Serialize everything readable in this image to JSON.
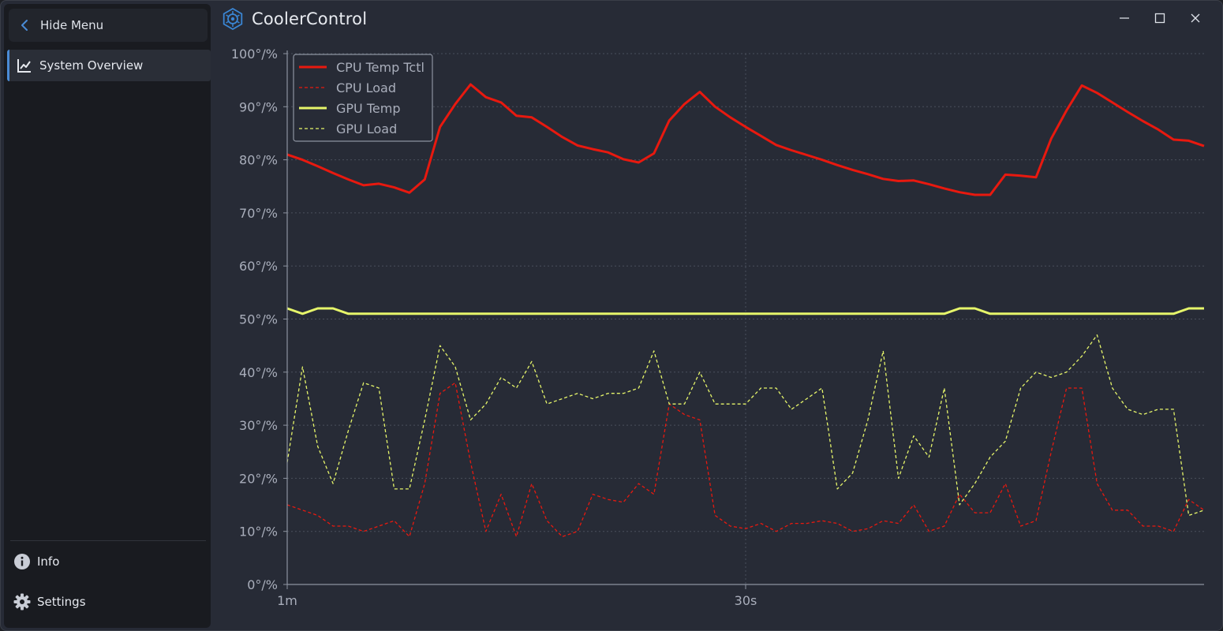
{
  "app": {
    "title": "CoolerControl"
  },
  "sidebar": {
    "hide_menu_label": "Hide Menu",
    "items": [
      {
        "label": "System Overview",
        "icon": "chart-line-icon",
        "active": true
      }
    ],
    "bottom_items": [
      {
        "label": "Info",
        "icon": "info-icon"
      },
      {
        "label": "Settings",
        "icon": "gear-icon"
      }
    ]
  },
  "colors": {
    "accent": "#4a8bd6",
    "cpu": "#e8190f",
    "gpu": "#e6f56a",
    "grid": "#4a4f5c",
    "axis": "#8d93a0"
  },
  "chart_data": {
    "type": "line",
    "title": "",
    "xlabel": "",
    "ylabel": "",
    "ylim": [
      0,
      100
    ],
    "y_ticks": [
      "0°/%",
      "10°/%",
      "20°/%",
      "30°/%",
      "40°/%",
      "50°/%",
      "60°/%",
      "70°/%",
      "80°/%",
      "90°/%",
      "100°/%"
    ],
    "x_ticks": [
      "1m",
      "30s"
    ],
    "xlim": [
      60,
      0
    ],
    "legend_position": "top-left",
    "series": [
      {
        "name": "CPU Temp Tctl",
        "style": "solid",
        "color": "#e8190f",
        "x": [
          60,
          59,
          58,
          57,
          56,
          55,
          54,
          53,
          52,
          51,
          50,
          49,
          48,
          47,
          46,
          45,
          44,
          43,
          42,
          41,
          40,
          39,
          38,
          37,
          36,
          35,
          34,
          33,
          32,
          31,
          30,
          29,
          28,
          27,
          26,
          25,
          24,
          23,
          22,
          21,
          20,
          19,
          18,
          17,
          16,
          15,
          14,
          13,
          12,
          11,
          10,
          9,
          8,
          7,
          6,
          5,
          4,
          3,
          2,
          1,
          0
        ],
        "values": [
          81,
          80,
          78.8,
          77.5,
          76.3,
          75.2,
          75.5,
          74.8,
          73.8,
          76.3,
          86.2,
          90.5,
          94.2,
          91.8,
          90.8,
          88.3,
          88,
          86.2,
          84.3,
          82.7,
          82,
          81.4,
          80.1,
          79.5,
          81.2,
          87.4,
          90.5,
          92.8,
          90,
          88,
          86.2,
          84.5,
          82.8,
          81.8,
          80.9,
          80,
          79,
          78.1,
          77.3,
          76.4,
          76,
          76.1,
          75.4,
          74.6,
          73.9,
          73.4,
          73.4,
          77.2,
          77,
          76.7,
          84,
          89.3,
          94,
          92.6,
          90.8,
          89,
          87.3,
          85.7,
          83.8,
          83.6,
          82.6
        ]
      },
      {
        "name": "CPU Load",
        "style": "dashed",
        "color": "#e8190f",
        "x": [
          60,
          59,
          58,
          57,
          56,
          55,
          54,
          53,
          52,
          51,
          50,
          49,
          48,
          47,
          46,
          45,
          44,
          43,
          42,
          41,
          40,
          39,
          38,
          37,
          36,
          35,
          34,
          33,
          32,
          31,
          30,
          29,
          28,
          27,
          26,
          25,
          24,
          23,
          22,
          21,
          20,
          19,
          18,
          17,
          16,
          15,
          14,
          13,
          12,
          11,
          10,
          9,
          8,
          7,
          6,
          5,
          4,
          3,
          2,
          1,
          0
        ],
        "values": [
          15,
          14,
          13,
          11,
          11,
          10,
          11,
          12,
          9,
          19,
          36,
          38,
          23,
          10,
          17,
          9,
          19,
          12,
          9,
          10,
          17,
          16,
          15.5,
          19,
          17,
          34,
          32,
          31,
          13,
          11,
          10.5,
          11.5,
          10,
          11.5,
          11.5,
          12,
          11.5,
          10,
          10.5,
          12,
          11.5,
          15,
          10,
          11,
          17,
          13.5,
          13.5,
          19,
          11,
          12,
          25,
          37,
          37,
          19,
          14,
          14,
          11,
          11,
          10,
          16,
          14
        ]
      },
      {
        "name": "GPU Temp",
        "style": "solid",
        "color": "#e6f56a",
        "x": [
          60,
          59,
          58,
          57,
          56,
          55,
          54,
          53,
          52,
          51,
          50,
          49,
          48,
          47,
          46,
          45,
          44,
          43,
          42,
          41,
          40,
          39,
          38,
          37,
          36,
          35,
          34,
          33,
          32,
          31,
          30,
          29,
          28,
          27,
          26,
          25,
          24,
          23,
          22,
          21,
          20,
          19,
          18,
          17,
          16,
          15,
          14,
          13,
          12,
          11,
          10,
          9,
          8,
          7,
          6,
          5,
          4,
          3,
          2,
          1,
          0
        ],
        "values": [
          52,
          51,
          52,
          52,
          51,
          51,
          51,
          51,
          51,
          51,
          51,
          51,
          51,
          51,
          51,
          51,
          51,
          51,
          51,
          51,
          51,
          51,
          51,
          51,
          51,
          51,
          51,
          51,
          51,
          51,
          51,
          51,
          51,
          51,
          51,
          51,
          51,
          51,
          51,
          51,
          51,
          51,
          51,
          51,
          52,
          52,
          51,
          51,
          51,
          51,
          51,
          51,
          51,
          51,
          51,
          51,
          51,
          51,
          51,
          52,
          52
        ]
      },
      {
        "name": "GPU Load",
        "style": "dashed",
        "color": "#e6f56a",
        "x": [
          60,
          59,
          58,
          57,
          56,
          55,
          54,
          53,
          52,
          51,
          50,
          49,
          48,
          47,
          46,
          45,
          44,
          43,
          42,
          41,
          40,
          39,
          38,
          37,
          36,
          35,
          34,
          33,
          32,
          31,
          30,
          29,
          28,
          27,
          26,
          25,
          24,
          23,
          22,
          21,
          20,
          19,
          18,
          17,
          16,
          15,
          14,
          13,
          12,
          11,
          10,
          9,
          8,
          7,
          6,
          5,
          4,
          3,
          2,
          1,
          0
        ],
        "values": [
          23,
          41,
          26,
          19,
          29,
          38,
          37,
          18,
          18,
          31,
          45,
          41,
          31,
          34,
          39,
          37,
          42,
          34,
          35,
          36,
          35,
          36,
          36,
          37,
          44,
          34,
          34,
          40,
          34,
          34,
          34,
          37,
          37,
          33,
          35,
          37,
          18,
          21,
          31,
          44,
          20,
          28,
          24,
          37,
          15,
          19,
          24,
          27,
          37,
          40,
          39,
          40,
          43,
          47,
          37,
          33,
          32,
          33,
          33,
          13,
          14
        ]
      }
    ]
  }
}
